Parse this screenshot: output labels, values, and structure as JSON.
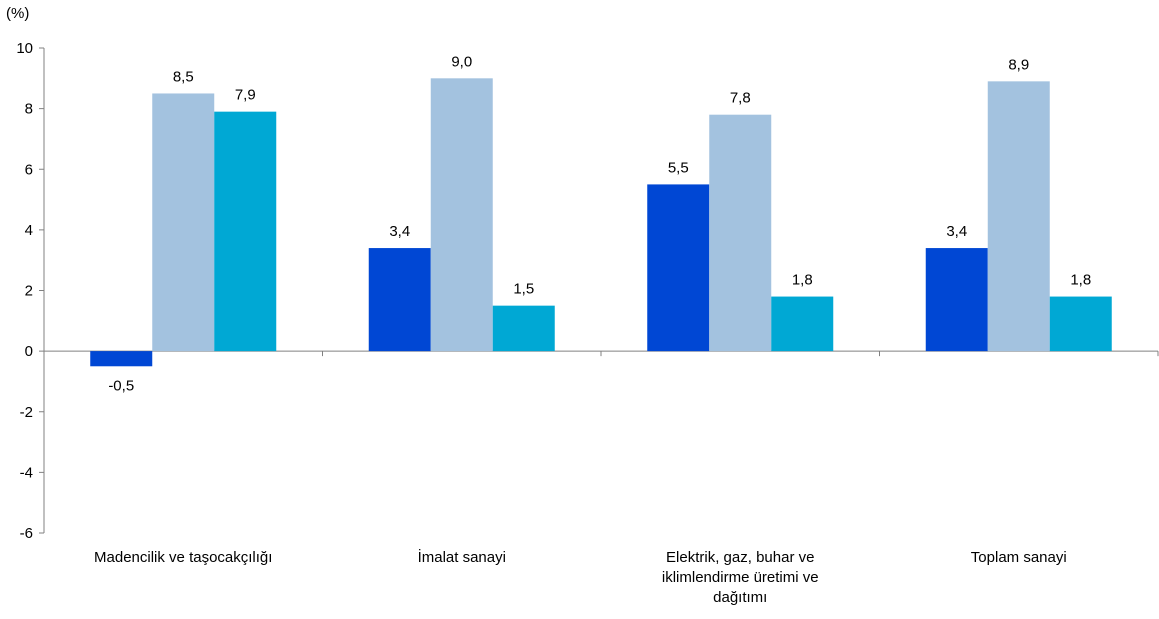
{
  "chart_data": {
    "type": "bar",
    "unit": "(%)",
    "categories": [
      [
        "Madencilik ve taşocakçılığı"
      ],
      [
        "İmalat sanayi"
      ],
      [
        "Elektrik, gaz, buhar ve",
        "iklimlendirme üretimi ve",
        "dağıtımı"
      ],
      [
        "Toplam sanayi"
      ]
    ],
    "series": [
      {
        "values": [
          -0.5,
          3.4,
          5.5,
          3.4
        ],
        "labels": [
          "-0,5",
          "3,4",
          "5,5",
          "3,4"
        ],
        "color": "#0047D4"
      },
      {
        "values": [
          8.5,
          9.0,
          7.8,
          8.9
        ],
        "labels": [
          "8,5",
          "9,0",
          "7,8",
          "8,9"
        ],
        "color": "#A3C2DF"
      },
      {
        "values": [
          7.9,
          1.5,
          1.8,
          1.8
        ],
        "labels": [
          "7,9",
          "1,5",
          "1,8",
          "1,8"
        ],
        "color": "#00A8D4"
      }
    ],
    "ylim": [
      -6,
      10
    ],
    "yticks": [
      10,
      8,
      6,
      4,
      2,
      0,
      -2,
      -4,
      -6
    ],
    "ytick_labels": [
      "10",
      "8",
      "6",
      "4",
      "2",
      "0",
      "-2",
      "-4",
      "-6"
    ],
    "grid": false,
    "legend": "none"
  }
}
